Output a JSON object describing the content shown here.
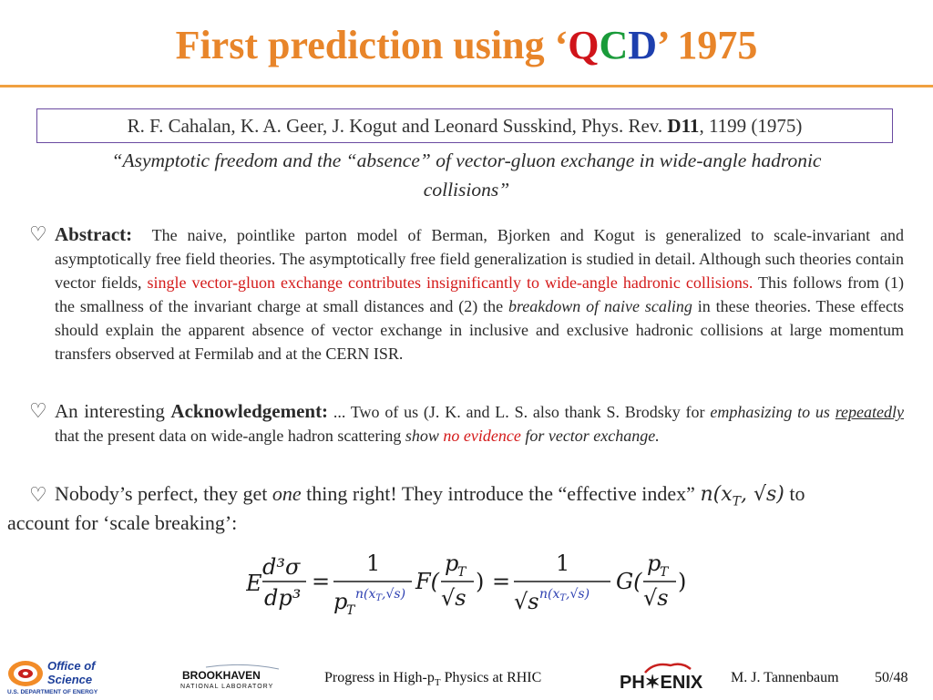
{
  "slide": {
    "title_prefix": "First prediction using ‘",
    "title_q": "Q",
    "title_c": "C",
    "title_d": "D",
    "title_suffix": "’ 1975"
  },
  "citation": {
    "authors": "R. F. Cahalan, K. A. Geer, J. Kogut and Leonard Susskind, Phys. Rev. ",
    "volume": "D11",
    "rest": ", 1199 (1975)"
  },
  "paper_title": {
    "line1": "“Asymptotic freedom and the “absence” of vector-gluon exchange in wide-angle hadronic",
    "line2": "collisions”"
  },
  "abstract": {
    "bullet": "♡",
    "head": "Abstract:",
    "part1": "The naive, pointlike parton model of Berman, Bjorken and Kogut is generalized to scale-invariant and asymptotically free field theories.  The asymptotically free field generalization is studied in detail.  Although such theories contain vector fields, ",
    "red": "single vector-gluon exchange contributes insignificantly to wide-angle hadronic collisions.",
    "part2": " This follows from (1) the smallness of the invariant charge at small distances and (2) the ",
    "italic": "breakdown of naive scaling",
    "part3": " in these theories.  These effects should explain the apparent absence of vector exchange in inclusive and exclusive hadronic collisions at large momentum transfers observed at Fermilab and at the CERN ISR."
  },
  "acknowledgement": {
    "bullet": "♡",
    "lead": "An interesting ",
    "head": "Acknowledgement:",
    "part1": " ...  Two of us (J. K. and L. S. also thank S. Brodsky for ",
    "it1": "emphasizing to us ",
    "it_ul": "repeatedly",
    "part2": "  that the present data on wide-angle hadron scattering ",
    "it2": "show",
    "red": " no evidence",
    "it3": "for vector exchange."
  },
  "effective_index": {
    "bullet": "♡",
    "text1": "Nobody’s perfect, they get ",
    "it": "one",
    "text2": " thing right!  They introduce the “effective index” ",
    "math": "n(x",
    "math_sub": "T",
    "math_rest": ", √s)",
    "text3": " to",
    "line2": "account for ‘scale breaking’:"
  },
  "equation": {
    "E": "E",
    "d3sigma": "d³σ",
    "dp3": "dp³",
    "eq": "=",
    "one": "1",
    "pT": "p",
    "T": "T",
    "n_exp": "n(x",
    "n_exp_sub": "T",
    "n_exp_rest": ",√s)",
    "F": "F(",
    "close": ")",
    "sqrt_s": "√s",
    "G": "G(",
    "s": "s"
  },
  "footer": {
    "office_line1": "Office of",
    "office_line2": "Science",
    "office_line3": "U.S. DEPARTMENT OF ENERGY",
    "bnl_line1": "BROOKHAVEN",
    "bnl_line2": "NATIONAL LABORATORY",
    "talk_prefix": "Progress in High-p",
    "talk_sub": "T",
    "talk_suffix": " Physics at RHIC",
    "phenix": "PH✶ENIX",
    "author": "M. J. Tannenbaum",
    "page": "50/48"
  },
  "colors": {
    "title": "#e8852a",
    "q": "#d0141a",
    "c": "#1a9b3a",
    "d": "#1d3fae",
    "highlight": "#d41a1a",
    "box": "#6a4aa0",
    "math_blue": "#2a3db0"
  }
}
